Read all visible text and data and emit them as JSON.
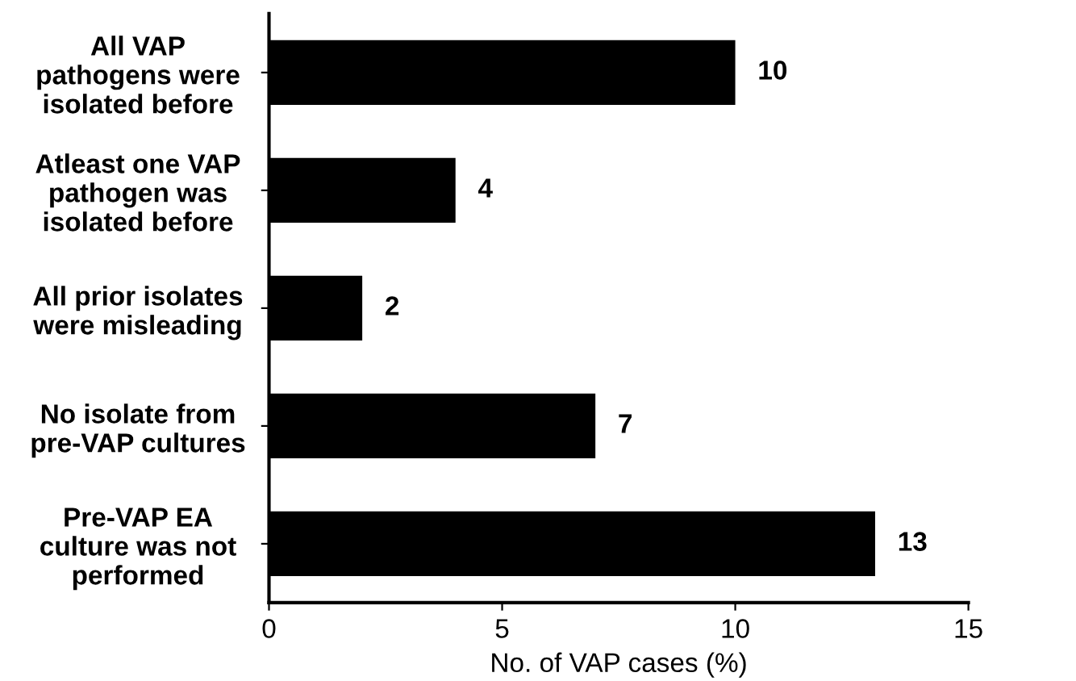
{
  "chart_data": {
    "type": "bar",
    "orientation": "horizontal",
    "xlabel": "No. of VAP cases (%)",
    "categories": [
      "All VAP\npathogens were\nisolated before",
      "Atleast one VAP\npathogen was\nisolated before",
      "All prior isolates\nwere misleading",
      "No isolate from\npre-VAP cultures",
      "Pre-VAP EA\nculture was not\nperformed"
    ],
    "values": [
      10,
      4,
      2,
      7,
      13
    ],
    "color": "#000000",
    "xlim": [
      0,
      15
    ],
    "xticks": [
      0,
      5,
      10,
      15
    ],
    "grid": false,
    "data_labels": true
  }
}
